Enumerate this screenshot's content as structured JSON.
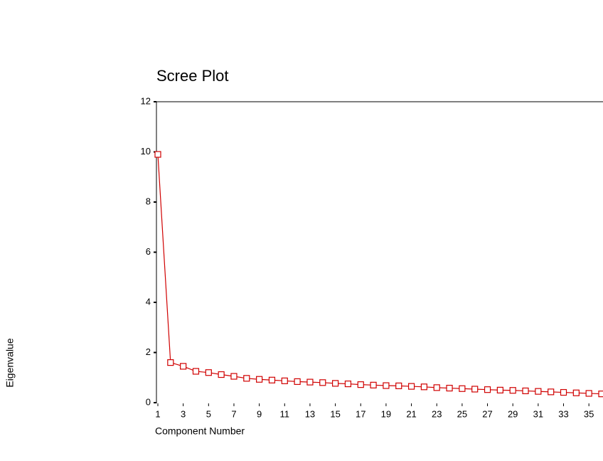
{
  "chart_data": {
    "type": "line",
    "title": "Scree Plot",
    "x_label": "Component Number",
    "y_label": "Eigenvalue",
    "x": [
      1,
      2,
      3,
      4,
      5,
      6,
      7,
      8,
      9,
      10,
      11,
      12,
      13,
      14,
      15,
      16,
      17,
      18,
      19,
      20,
      21,
      22,
      23,
      24,
      25,
      26,
      27,
      28,
      29,
      30,
      31,
      32,
      33,
      34,
      35,
      36
    ],
    "values": [
      9.9,
      1.6,
      1.45,
      1.25,
      1.2,
      1.12,
      1.05,
      0.97,
      0.93,
      0.9,
      0.87,
      0.84,
      0.82,
      0.8,
      0.77,
      0.75,
      0.72,
      0.7,
      0.68,
      0.67,
      0.65,
      0.63,
      0.6,
      0.58,
      0.56,
      0.54,
      0.52,
      0.5,
      0.49,
      0.47,
      0.45,
      0.43,
      0.41,
      0.39,
      0.37,
      0.35
    ],
    "color": "#d00000",
    "xlim": [
      1,
      36
    ],
    "ylim": [
      0,
      12
    ],
    "xticks": [
      1,
      3,
      5,
      7,
      9,
      11,
      13,
      15,
      17,
      19,
      21,
      23,
      25,
      27,
      29,
      31,
      33,
      35
    ],
    "yticks": [
      0,
      2,
      4,
      6,
      8,
      10,
      12
    ]
  }
}
